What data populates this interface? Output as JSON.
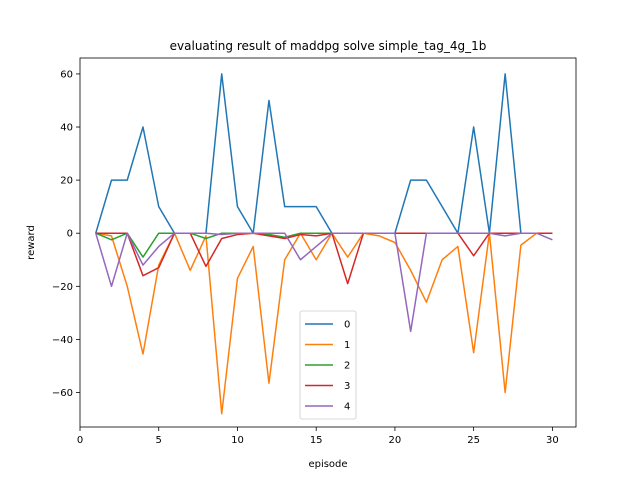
{
  "chart_data": {
    "type": "line",
    "title": "evaluating result of maddpg solve simple_tag_4g_1b",
    "xlabel": "episode",
    "ylabel": "reward",
    "xlim": [
      0,
      31.5
    ],
    "ylim": [
      -73,
      66
    ],
    "xticks": [
      0,
      5,
      10,
      15,
      20,
      25,
      30
    ],
    "yticks": [
      -60,
      -40,
      -20,
      0,
      20,
      40,
      60
    ],
    "ytick_labels": [
      "−60",
      "−40",
      "−20",
      "0",
      "20",
      "40",
      "60"
    ],
    "grid": false,
    "legend_position": "lower center",
    "x": [
      1,
      2,
      3,
      4,
      5,
      6,
      7,
      8,
      9,
      10,
      11,
      12,
      13,
      14,
      15,
      16,
      17,
      18,
      19,
      20,
      21,
      22,
      23,
      24,
      25,
      26,
      27,
      28,
      29,
      30
    ],
    "series": [
      {
        "name": "0",
        "color": "#1f77b4",
        "values": [
          0,
          20,
          20,
          40,
          10,
          0,
          0,
          0,
          60,
          10,
          0,
          50,
          10,
          10,
          10,
          0,
          0,
          0,
          0,
          0,
          20,
          20,
          10,
          0,
          40,
          0,
          60,
          0,
          0,
          0
        ]
      },
      {
        "name": "1",
        "color": "#ff7f0e",
        "values": [
          0,
          -1,
          -20,
          -45.5,
          -12,
          0,
          -14,
          -1,
          -68,
          -17,
          -5,
          -56.5,
          -10,
          0,
          -10,
          0,
          -9,
          0,
          -1,
          -3.5,
          -14,
          -26,
          -10,
          -5,
          -45,
          0,
          -60,
          -4.5,
          0,
          0
        ]
      },
      {
        "name": "2",
        "color": "#2ca02c",
        "values": [
          0,
          -2.5,
          0,
          -9,
          0,
          0,
          0,
          -2,
          0,
          0,
          0,
          -0.5,
          -1.5,
          0,
          0,
          0,
          0,
          0,
          0,
          0,
          0,
          0,
          0,
          0,
          0,
          0,
          0,
          0,
          0,
          0
        ]
      },
      {
        "name": "3",
        "color": "#d62728",
        "values": [
          0,
          0,
          0,
          -16,
          -13,
          0,
          0,
          -12.5,
          -2,
          -0.5,
          0,
          -1,
          -2,
          -0.5,
          -1,
          0,
          -19,
          0,
          0,
          0,
          0,
          0,
          0,
          0,
          -8.5,
          0,
          0,
          0,
          0,
          0
        ]
      },
      {
        "name": "4",
        "color": "#9467bd",
        "values": [
          0,
          -20,
          0,
          -12,
          -5,
          0,
          0,
          0,
          -0.5,
          0,
          0,
          0,
          0,
          -10,
          -5,
          0,
          0,
          0,
          0,
          0,
          -37,
          0,
          0,
          0,
          0,
          0,
          -1,
          0,
          0,
          -2.5
        ]
      }
    ]
  }
}
